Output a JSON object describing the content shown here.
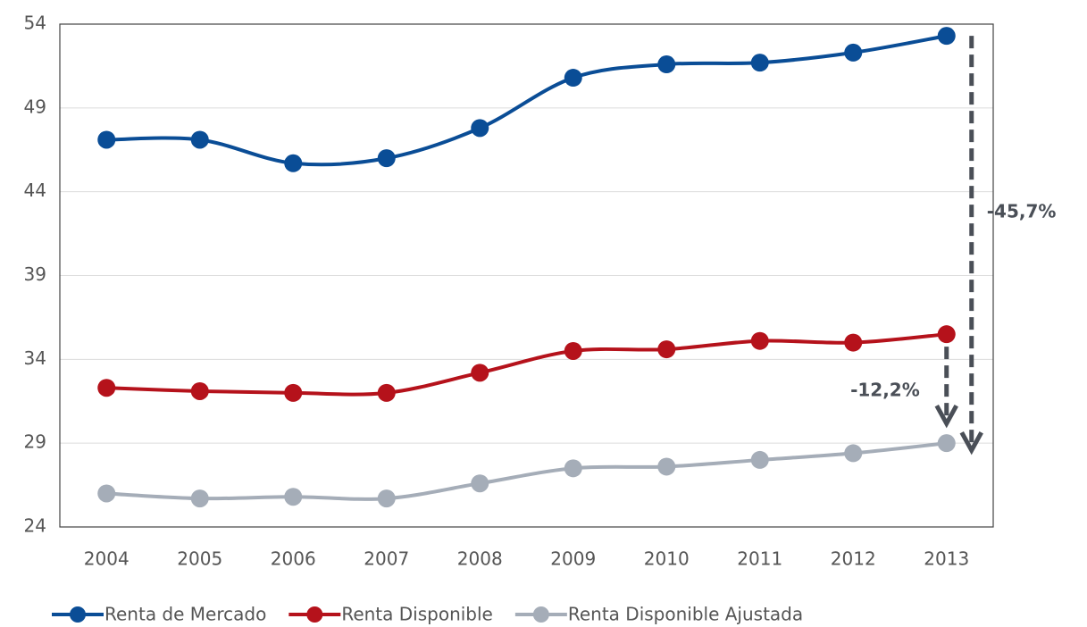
{
  "chart_data": {
    "type": "line",
    "categories": [
      "2004",
      "2005",
      "2006",
      "2007",
      "2008",
      "2009",
      "2010",
      "2011",
      "2012",
      "2013"
    ],
    "series": [
      {
        "name": "Renta de Mercado",
        "color": "#0a4d96",
        "values": [
          47.1,
          47.1,
          45.7,
          46.0,
          47.8,
          50.8,
          51.6,
          51.7,
          52.3,
          53.3
        ]
      },
      {
        "name": "Renta Disponible",
        "color": "#b5121b",
        "values": [
          32.3,
          32.1,
          32.0,
          32.0,
          33.2,
          34.5,
          34.6,
          35.1,
          35.0,
          35.5
        ]
      },
      {
        "name": "Renta Disponible Ajustada",
        "color": "#a5adb8",
        "values": [
          26.0,
          25.7,
          25.8,
          25.7,
          26.6,
          27.5,
          27.6,
          28.0,
          28.4,
          29.0
        ]
      }
    ],
    "ylim": [
      24,
      54
    ],
    "yticks": [
      24,
      29,
      34,
      39,
      44,
      49,
      54
    ],
    "grid": true,
    "annotations": [
      "-45,7%",
      "-12,2%"
    ],
    "annotation_color": "#4a4f57",
    "legend": "bottom"
  }
}
